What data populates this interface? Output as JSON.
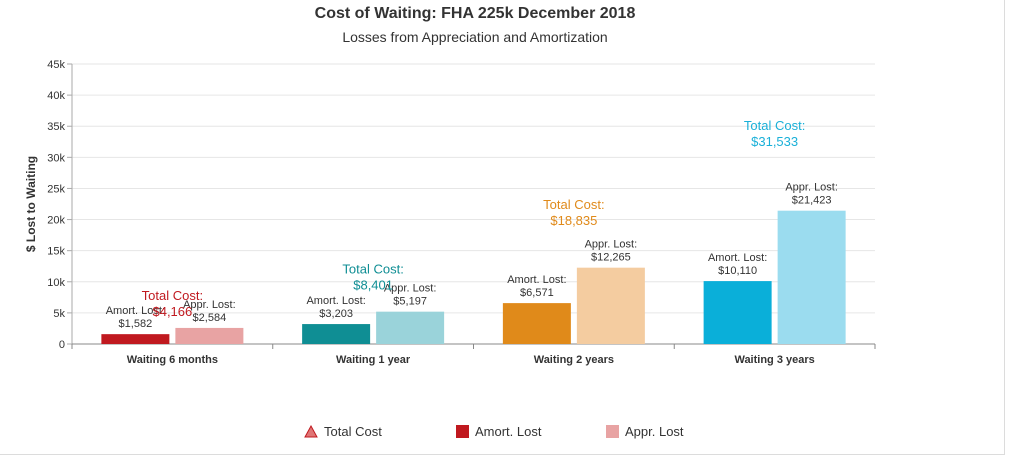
{
  "chart_data": {
    "type": "bar",
    "title": "Cost of Waiting: FHA 225k December 2018",
    "subtitle": "Losses from Appreciation and Amortization",
    "ylabel": "$ Lost to Waiting",
    "xlabel": "",
    "ylim": [
      0,
      45000
    ],
    "yticks": [
      {
        "value": 0,
        "label": "0"
      },
      {
        "value": 5000,
        "label": "5k"
      },
      {
        "value": 10000,
        "label": "10k"
      },
      {
        "value": 15000,
        "label": "15k"
      },
      {
        "value": 20000,
        "label": "20k"
      },
      {
        "value": 25000,
        "label": "25k"
      },
      {
        "value": 30000,
        "label": "30k"
      },
      {
        "value": 35000,
        "label": "35k"
      },
      {
        "value": 40000,
        "label": "40k"
      },
      {
        "value": 45000,
        "label": "45k"
      }
    ],
    "grid": true,
    "legend_position": "bottom",
    "categories": [
      "Waiting 6 months",
      "Waiting 1 year",
      "Waiting 2 years",
      "Waiting 3 years"
    ],
    "series": [
      {
        "name": "Total Cost",
        "kind": "annotation",
        "values": [
          4166,
          8401,
          18835,
          31533
        ],
        "value_labels": [
          "$4,166",
          "$8,401",
          "$18,835",
          "$31,533"
        ],
        "label_prefix": "Total Cost:"
      },
      {
        "name": "Amort. Lost",
        "kind": "bar",
        "values": [
          1582,
          3203,
          6571,
          10110
        ],
        "value_labels": [
          "$1,582",
          "$3,203",
          "$6,571",
          "$10,110"
        ],
        "label_prefix": "Amort. Lost:"
      },
      {
        "name": "Appr. Lost",
        "kind": "bar",
        "values": [
          2584,
          5197,
          12265,
          21423
        ],
        "value_labels": [
          "$2,584",
          "$5,197",
          "$12,265",
          "$21,423"
        ],
        "label_prefix": "Appr. Lost:"
      }
    ],
    "category_colors": {
      "amort": [
        "#c0191f",
        "#0f8e94",
        "#e08a1a",
        "#0aafd9"
      ],
      "appr": [
        "#e8a3a3",
        "#9ad3da",
        "#f4cca0",
        "#9bdcef"
      ],
      "total_text": [
        "#c0191f",
        "#0f8e94",
        "#e08a1a",
        "#1ab0d8"
      ]
    },
    "legend_colors": {
      "Total Cost": "#e07575",
      "Amort. Lost": "#c0191f",
      "Appr. Lost": "#e8a3a3"
    }
  }
}
